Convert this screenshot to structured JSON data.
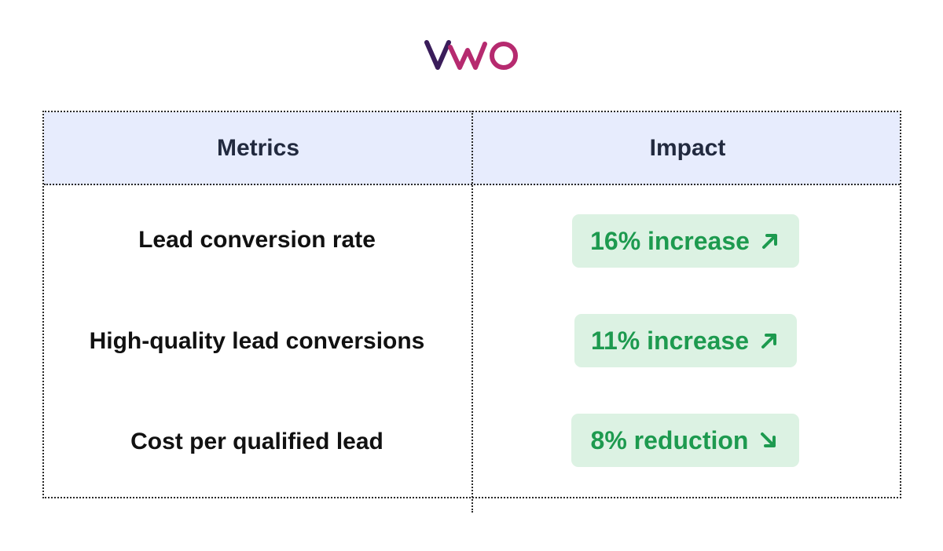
{
  "brand": {
    "logo_text": "VWO",
    "colors": {
      "logo_dark": "#3a1d5a",
      "logo_magenta": "#b62a6f",
      "header_bg": "#e7ecfd",
      "pill_bg": "#dcf2e3",
      "pill_text": "#1d9a4f"
    }
  },
  "table": {
    "headers": {
      "metrics": "Metrics",
      "impact": "Impact"
    },
    "rows": [
      {
        "metric": "Lead conversion rate",
        "impact": "16% increase",
        "direction_icon": "arrow-up-right-icon"
      },
      {
        "metric": "High-quality lead conversions",
        "impact": "11% increase",
        "direction_icon": "arrow-up-right-icon"
      },
      {
        "metric": "Cost per qualified lead",
        "impact": "8% reduction",
        "direction_icon": "arrow-down-right-icon"
      }
    ]
  }
}
